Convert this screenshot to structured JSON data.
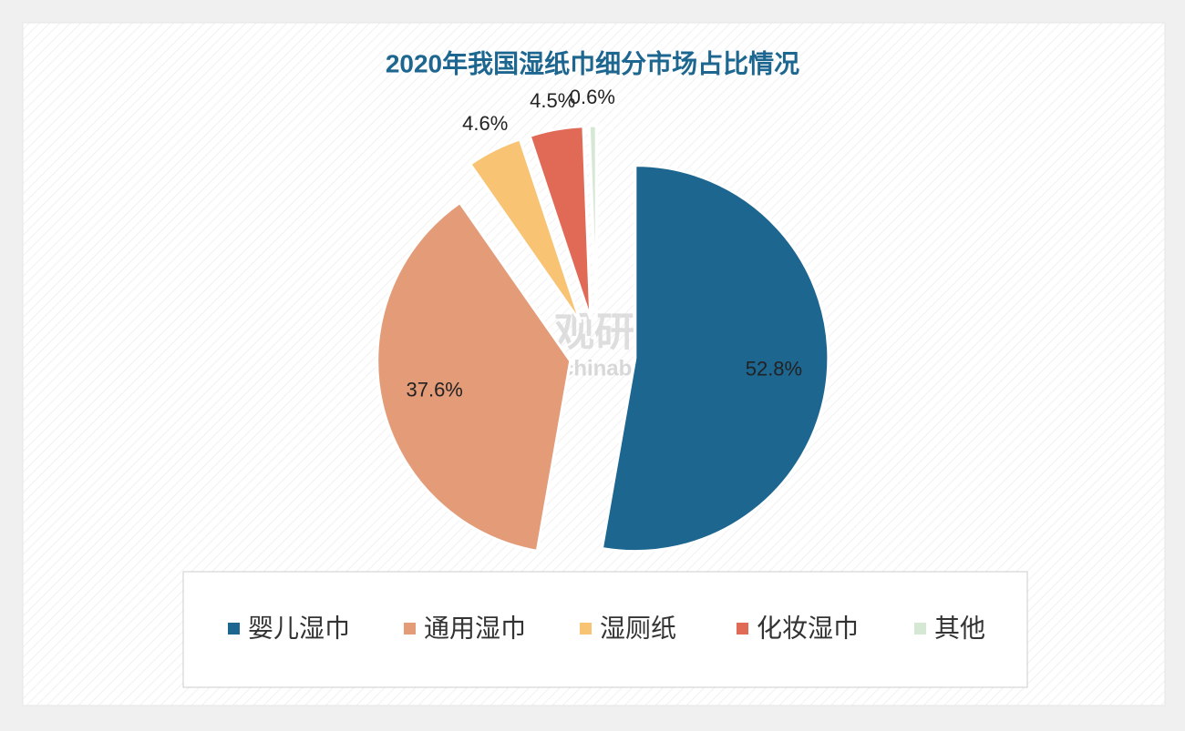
{
  "chart_data": {
    "type": "pie",
    "title": "2020年我国湿纸巾细分市场占比情况",
    "categories": [
      "婴儿湿巾",
      "通用湿巾",
      "湿厕纸",
      "化妆湿巾",
      "其他"
    ],
    "values": [
      52.8,
      37.6,
      4.6,
      4.5,
      0.6
    ],
    "value_labels": [
      "52.8%",
      "37.6%",
      "4.6%",
      "4.5%",
      "0.6%"
    ],
    "colors": [
      "#1c6690",
      "#e39b78",
      "#f8c372",
      "#e16a57",
      "#d5e8d4"
    ],
    "legend": "bottom"
  },
  "watermark": {
    "name": "观研报告网",
    "url": "chinabaogao.com"
  }
}
